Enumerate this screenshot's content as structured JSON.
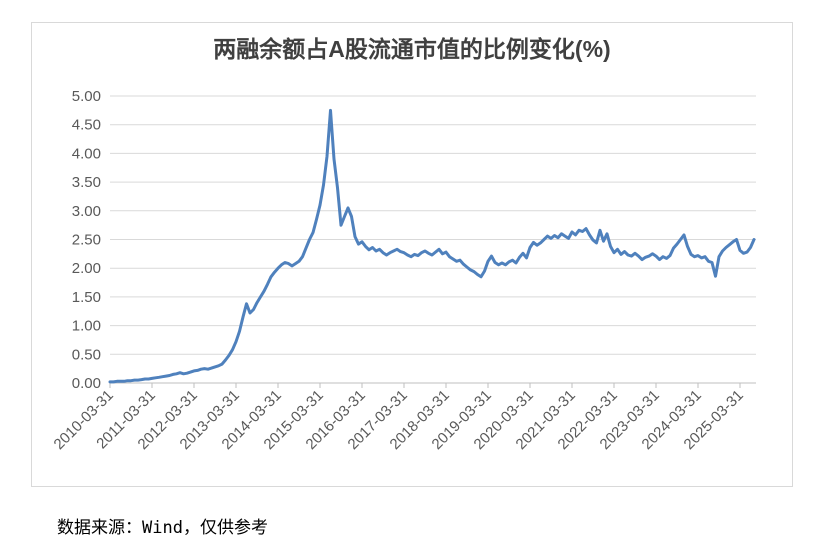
{
  "caption": "数据来源：Wind，仅供参考",
  "colors": {
    "line": "#4F81BD",
    "gridline": "#D9D9D9",
    "axis": "#BFBFBF",
    "tick_label": "#595959",
    "title": "#404040",
    "chart_border": "#D9D9D9",
    "background": "#FFFFFF"
  },
  "chart_data": {
    "type": "line",
    "title": "两融余额占A股流通市值的比例变化(%)",
    "xlabel": "",
    "ylabel": "",
    "ylim": [
      0,
      5
    ],
    "grid": true,
    "legend": "none",
    "y_tick_labels": [
      "0.00",
      "0.50",
      "1.00",
      "1.50",
      "2.00",
      "2.50",
      "3.00",
      "3.50",
      "4.00",
      "4.50",
      "5.00"
    ],
    "x_tick_labels": [
      "2010-03-31",
      "2011-03-31",
      "2012-03-31",
      "2013-03-31",
      "2014-03-31",
      "2015-03-31",
      "2016-03-31",
      "2017-03-31",
      "2018-03-31",
      "2019-03-31",
      "2020-03-31",
      "2021-03-31",
      "2022-03-31",
      "2023-03-31",
      "2024-03-31",
      "2025-03-31"
    ],
    "x_start": "2010-03",
    "x_end": "2025-07",
    "x_unit": "month",
    "months_per_x_tick": 12,
    "values": [
      0.02,
      0.02,
      0.03,
      0.03,
      0.03,
      0.04,
      0.04,
      0.05,
      0.05,
      0.06,
      0.07,
      0.07,
      0.08,
      0.09,
      0.1,
      0.11,
      0.12,
      0.13,
      0.15,
      0.16,
      0.18,
      0.16,
      0.17,
      0.19,
      0.21,
      0.22,
      0.24,
      0.25,
      0.24,
      0.26,
      0.28,
      0.3,
      0.33,
      0.4,
      0.48,
      0.58,
      0.72,
      0.9,
      1.15,
      1.38,
      1.22,
      1.28,
      1.4,
      1.5,
      1.6,
      1.72,
      1.85,
      1.93,
      2.0,
      2.06,
      2.1,
      2.08,
      2.04,
      2.08,
      2.12,
      2.2,
      2.35,
      2.5,
      2.62,
      2.85,
      3.1,
      3.45,
      3.95,
      4.75,
      3.9,
      3.4,
      2.75,
      2.9,
      3.05,
      2.9,
      2.55,
      2.42,
      2.46,
      2.38,
      2.32,
      2.36,
      2.3,
      2.33,
      2.27,
      2.23,
      2.27,
      2.3,
      2.33,
      2.29,
      2.27,
      2.23,
      2.2,
      2.24,
      2.22,
      2.27,
      2.3,
      2.26,
      2.23,
      2.28,
      2.33,
      2.25,
      2.28,
      2.2,
      2.16,
      2.12,
      2.14,
      2.07,
      2.02,
      1.97,
      1.94,
      1.89,
      1.85,
      1.95,
      2.12,
      2.21,
      2.1,
      2.06,
      2.09,
      2.06,
      2.11,
      2.14,
      2.09,
      2.19,
      2.26,
      2.18,
      2.36,
      2.45,
      2.4,
      2.44,
      2.5,
      2.56,
      2.52,
      2.57,
      2.53,
      2.6,
      2.56,
      2.52,
      2.63,
      2.58,
      2.66,
      2.64,
      2.69,
      2.58,
      2.49,
      2.44,
      2.66,
      2.47,
      2.6,
      2.38,
      2.27,
      2.33,
      2.24,
      2.29,
      2.23,
      2.21,
      2.26,
      2.21,
      2.15,
      2.19,
      2.21,
      2.25,
      2.21,
      2.15,
      2.2,
      2.17,
      2.22,
      2.35,
      2.42,
      2.5,
      2.58,
      2.38,
      2.24,
      2.2,
      2.22,
      2.18,
      2.2,
      2.12,
      2.1,
      1.86,
      2.2,
      2.3,
      2.36,
      2.41,
      2.46,
      2.5,
      2.31,
      2.26,
      2.28,
      2.36,
      2.5
    ]
  }
}
